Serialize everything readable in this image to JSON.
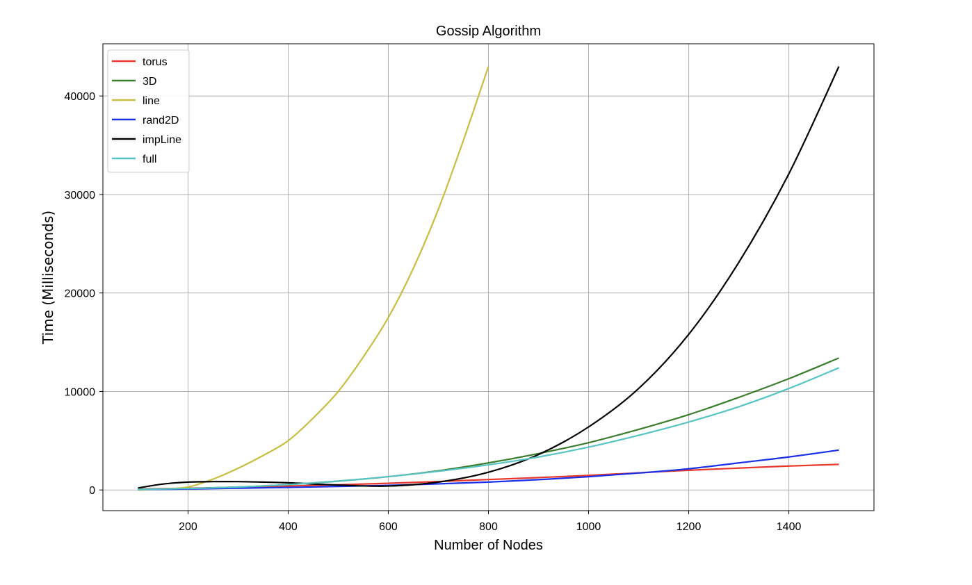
{
  "chart_data": {
    "type": "line",
    "title": "Gossip Algorithm",
    "xlabel": "Number of Nodes",
    "ylabel": "Time (Milliseconds)",
    "xlim": [
      30,
      1570
    ],
    "ylim": [
      -2100,
      45300
    ],
    "xticks": [
      200,
      400,
      600,
      800,
      1000,
      1200,
      1400
    ],
    "yticks": [
      0,
      10000,
      20000,
      30000,
      40000
    ],
    "grid": true,
    "legend_position": "top-left",
    "series": [
      {
        "name": "torus",
        "color": "#e8372c",
        "x": [
          100,
          200,
          300,
          400,
          500,
          600,
          700,
          800,
          900,
          1000,
          1100,
          1200,
          1300,
          1400,
          1500
        ],
        "y": [
          100,
          180,
          280,
          400,
          530,
          680,
          860,
          1060,
          1260,
          1480,
          1740,
          2000,
          2220,
          2430,
          2600
        ]
      },
      {
        "name": "3D",
        "color": "#3a7d2c",
        "x": [
          100,
          200,
          300,
          400,
          500,
          600,
          700,
          800,
          900,
          1000,
          1100,
          1200,
          1300,
          1400,
          1500
        ],
        "y": [
          60,
          150,
          300,
          550,
          900,
          1350,
          1950,
          2750,
          3700,
          4800,
          6150,
          7650,
          9400,
          11300,
          13400
        ]
      },
      {
        "name": "line",
        "color": "#c8bd3f",
        "x": [
          100,
          150,
          200,
          250,
          300,
          350,
          400,
          450,
          500,
          550,
          600,
          650,
          700,
          750,
          800
        ],
        "y": [
          0,
          100,
          300,
          1100,
          2200,
          3500,
          5000,
          7300,
          10000,
          13500,
          17500,
          22500,
          28500,
          35500,
          43000
        ]
      },
      {
        "name": "rand2D",
        "color": "#1a2fe8",
        "x": [
          100,
          200,
          300,
          400,
          500,
          600,
          700,
          800,
          900,
          1000,
          1100,
          1200,
          1300,
          1400,
          1500
        ],
        "y": [
          50,
          100,
          180,
          260,
          360,
          470,
          620,
          800,
          1050,
          1350,
          1720,
          2150,
          2750,
          3350,
          4050
        ]
      },
      {
        "name": "impLine",
        "color": "#000000",
        "x": [
          100,
          150,
          200,
          250,
          300,
          350,
          400,
          500,
          600,
          700,
          800,
          900,
          1000,
          1100,
          1200,
          1300,
          1400,
          1500
        ],
        "y": [
          200,
          600,
          800,
          850,
          850,
          800,
          730,
          500,
          400,
          800,
          1800,
          3600,
          6400,
          10300,
          15800,
          23100,
          32100,
          43000
        ]
      },
      {
        "name": "full",
        "color": "#56c4c4",
        "x": [
          100,
          200,
          300,
          400,
          500,
          600,
          700,
          800,
          900,
          1000,
          1100,
          1200,
          1300,
          1400,
          1500
        ],
        "y": [
          60,
          150,
          300,
          550,
          900,
          1350,
          1900,
          2550,
          3350,
          4350,
          5550,
          6900,
          8450,
          10300,
          12400
        ]
      }
    ]
  }
}
